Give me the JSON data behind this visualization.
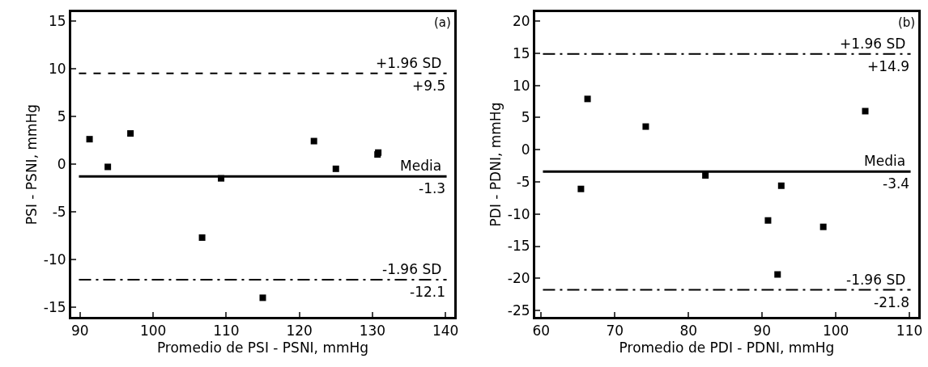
{
  "chart_data": [
    {
      "type": "scatter",
      "xlabel": "Promedio de PSI - PSNI, mmHg",
      "ylabel": "PSI - PSNI, mmHg",
      "marker": "square",
      "grid": false,
      "x": [
        91.3,
        93.8,
        96.9,
        106.7,
        109.3,
        115,
        122,
        125,
        130.7,
        130.8
      ],
      "series": [
        {
          "color": "#000000",
          "values": [
            2.6,
            -0.3,
            3.2,
            -7.7,
            -1.5,
            -14,
            2.4,
            -0.5,
            1.0,
            1.2
          ]
        }
      ],
      "xlim": [
        88.8,
        141.2
      ],
      "xticks": [
        90,
        100,
        110,
        120,
        130,
        140
      ],
      "ylim": [
        -16,
        15.9
      ],
      "yticks": [
        -15,
        -10,
        -5,
        0,
        5,
        10,
        15
      ],
      "ref_lines": [
        {
          "axis": "y",
          "value": 9.5,
          "label": "+1.96 SD",
          "line_style": "dashed",
          "color": "#000000"
        },
        {
          "axis": "y",
          "value": -1.3,
          "label": "Media",
          "line_style": "solid",
          "color": "#000000"
        },
        {
          "axis": "y",
          "value": -12.1,
          "label": "-1.96 SD",
          "line_style": "dashdot",
          "color": "#000000"
        }
      ],
      "annotations": [
        "(a)",
        {
          "text": "+9.5",
          "y": 9.5
        },
        {
          "text": "-1.3",
          "y": -1.3
        },
        {
          "text": "-12.1",
          "y": -12.1
        }
      ]
    },
    {
      "type": "scatter",
      "xlabel": "Promedio de PDI - PDNI, mmHg",
      "ylabel": "PDI - PDNI, mmHg",
      "marker": "square",
      "grid": false,
      "x": [
        65.4,
        66.3,
        74.2,
        82.3,
        90.8,
        92.1,
        92.6,
        98.3,
        104
      ],
      "series": [
        {
          "color": "#000000",
          "values": [
            -6.1,
            7.9,
            3.6,
            -4.0,
            -11.0,
            -19.4,
            -5.6,
            -12.0,
            6.0
          ]
        }
      ],
      "xlim": [
        59.2,
        111.2
      ],
      "xticks": [
        60,
        70,
        80,
        90,
        100,
        110
      ],
      "ylim": [
        -26,
        21.4
      ],
      "yticks": [
        -25,
        -20,
        -15,
        -10,
        -5,
        0,
        5,
        10,
        15,
        20
      ],
      "ref_lines": [
        {
          "axis": "y",
          "value": 14.9,
          "label": "+1.96 SD",
          "line_style": "dashdot",
          "color": "#000000"
        },
        {
          "axis": "y",
          "value": -3.4,
          "label": "Media",
          "line_style": "solid",
          "color": "#000000"
        },
        {
          "axis": "y",
          "value": -21.8,
          "label": "-1.96 SD",
          "line_style": "dashdot",
          "color": "#000000"
        }
      ],
      "annotations": [
        "(b)",
        {
          "text": "+14.9",
          "y": 14.9
        },
        {
          "text": "-3.4",
          "y": -3.4
        },
        {
          "text": "-21.8",
          "y": -21.8
        }
      ]
    }
  ]
}
